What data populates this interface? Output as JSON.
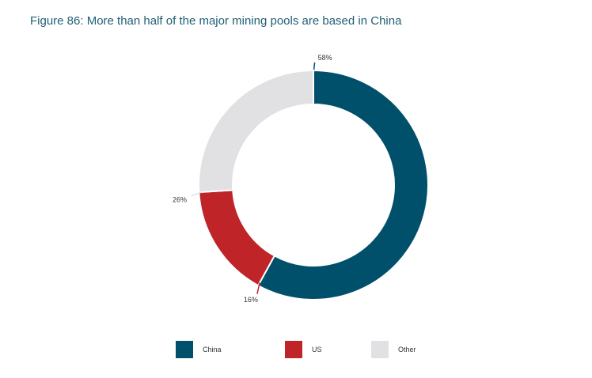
{
  "chart_data": {
    "type": "pie",
    "title": "Figure 86: More than half of the major mining pools are based in China",
    "donut": true,
    "categories": [
      "China",
      "US",
      "Other"
    ],
    "values": [
      58,
      16,
      26
    ],
    "value_labels": [
      "58%",
      "16%",
      "26%"
    ],
    "colors": [
      "#00506b",
      "#bf2528",
      "#e1e0e3"
    ],
    "legend_position": "bottom"
  }
}
